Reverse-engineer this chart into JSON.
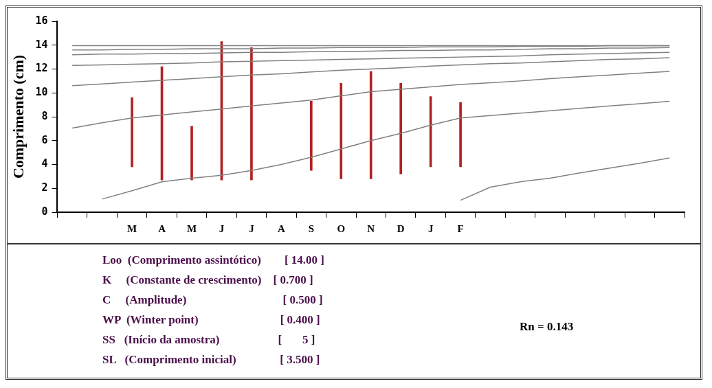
{
  "chart_data": {
    "type": "line",
    "ylabel": "Comprimento (cm)",
    "ylim": [
      0,
      16
    ],
    "categories": [
      null,
      null,
      "M",
      "A",
      "M",
      "J",
      "J",
      "A",
      "S",
      "O",
      "N",
      "D",
      "J",
      "F",
      null,
      null,
      null,
      null,
      null,
      null,
      null
    ],
    "yticks": [
      0,
      2,
      4,
      6,
      8,
      10,
      12,
      14,
      16
    ],
    "grid": false,
    "legend": false,
    "marker": "none",
    "line_style": "solid",
    "series": [
      {
        "color": "#808080",
        "values": [
          null,
          1.1,
          1.8,
          2.55,
          2.85,
          3.1,
          3.5,
          4.0,
          4.6,
          5.3,
          6.0,
          6.6,
          7.3,
          7.9,
          8.1,
          8.3,
          8.5,
          8.7,
          8.9,
          9.1,
          9.3
        ]
      },
      {
        "color": "#808080",
        "values": [
          7.05,
          7.5,
          7.9,
          8.15,
          8.4,
          8.65,
          8.9,
          9.15,
          9.4,
          9.75,
          10.1,
          10.3,
          10.5,
          10.7,
          10.85,
          11.0,
          11.2,
          11.35,
          11.5,
          11.65,
          11.8
        ]
      },
      {
        "color": "#808080",
        "values": [
          10.6,
          10.75,
          10.9,
          11.05,
          11.2,
          11.35,
          11.5,
          11.6,
          11.75,
          11.9,
          12.0,
          12.1,
          12.25,
          12.35,
          12.45,
          12.5,
          12.6,
          12.7,
          12.8,
          12.85,
          12.95
        ]
      },
      {
        "color": "#808080",
        "values": [
          12.3,
          12.35,
          12.4,
          12.45,
          12.5,
          12.6,
          12.65,
          12.7,
          12.75,
          12.8,
          12.85,
          12.9,
          12.95,
          13.0,
          13.05,
          13.1,
          13.2,
          13.25,
          13.3,
          13.35,
          13.4
        ]
      },
      {
        "color": "#808080",
        "values": [
          13.2,
          13.25,
          13.25,
          13.3,
          13.3,
          13.35,
          13.4,
          13.4,
          13.45,
          13.45,
          13.5,
          13.55,
          13.55,
          13.6,
          13.6,
          13.65,
          13.7,
          13.7,
          13.75,
          13.75,
          13.8
        ]
      },
      {
        "color": "#808080",
        "values": [
          13.6,
          13.6,
          13.65,
          13.65,
          13.7,
          13.7,
          13.7,
          13.75,
          13.75,
          13.8,
          13.8,
          13.8,
          13.85,
          13.85,
          13.85,
          13.9,
          13.9,
          13.9,
          13.95,
          13.95,
          13.95
        ]
      },
      {
        "color": "#808080",
        "values": [
          13.95,
          13.95,
          13.95,
          13.95,
          13.95,
          13.95,
          13.95,
          13.95,
          13.95,
          13.95,
          13.95,
          13.95,
          13.95,
          13.95,
          13.95,
          13.95,
          13.95,
          13.95,
          13.95,
          13.95,
          13.95
        ]
      },
      {
        "color": "#808080",
        "values": [
          null,
          null,
          null,
          null,
          null,
          null,
          null,
          null,
          null,
          null,
          null,
          null,
          null,
          1.0,
          2.1,
          2.55,
          2.85,
          3.3,
          3.7,
          4.1,
          4.55
        ]
      },
      {
        "type": "bar",
        "color": "#b22222",
        "base": [
          null,
          null,
          3.8,
          2.7,
          2.7,
          2.7,
          2.7,
          null,
          3.5,
          2.8,
          2.8,
          3.2,
          3.8,
          3.8,
          null,
          null,
          null,
          null,
          null,
          null,
          null
        ],
        "values": [
          null,
          null,
          5.8,
          9.5,
          4.5,
          11.6,
          11.1,
          null,
          5.8,
          8.0,
          9.0,
          7.6,
          5.9,
          5.4,
          null,
          null,
          null,
          null,
          null,
          null,
          null
        ]
      }
    ],
    "annotations": [
      "Loo  (Comprimento assintótico)        [ 14.00 ]",
      "K     (Constante de crescimento)    [ 0.700 ]",
      "C     (Amplitude)                                 [ 0.500 ]",
      "WP  (Winter point)                            [ 0.400 ]",
      "SS   (Início da amostra)                    [       5 ]",
      "SL   (Comprimento inicial)               [ 3.500 ]",
      "Rn = 0.143"
    ]
  }
}
